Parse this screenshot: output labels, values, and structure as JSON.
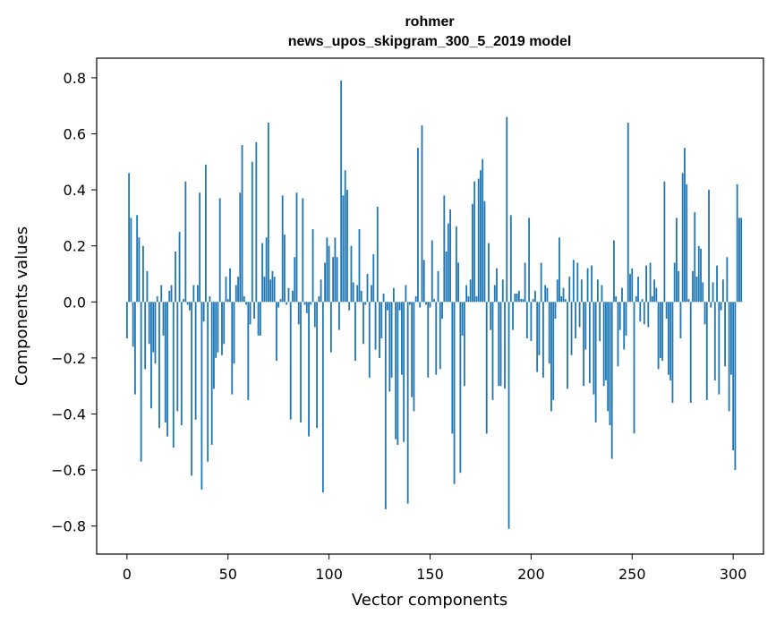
{
  "chart_data": {
    "type": "bar",
    "title": "rohmer",
    "subtitle": "news_upos_skipgram_300_5_2019 model",
    "xlabel": "Vector components",
    "ylabel": "Components values",
    "xlim": [
      -15,
      315
    ],
    "ylim": [
      -0.9,
      0.87
    ],
    "x_ticks": [
      0,
      50,
      100,
      150,
      200,
      250,
      300
    ],
    "x_tick_labels": [
      "0",
      "50",
      "100",
      "150",
      "200",
      "250",
      "300"
    ],
    "y_ticks": [
      0.8,
      0.6,
      0.4,
      0.2,
      0.0,
      -0.2,
      -0.4,
      -0.6,
      -0.8
    ],
    "y_tick_labels": [
      "0.8",
      "0.6",
      "0.4",
      "0.2",
      "0.0",
      "−0.2",
      "−0.4",
      "−0.6",
      "−0.8"
    ],
    "bar_color": "#1f77b4",
    "grid": false,
    "legend": "none",
    "values": [
      -0.13,
      0.46,
      0.3,
      -0.16,
      -0.33,
      0.31,
      0.23,
      -0.57,
      0.2,
      -0.24,
      0.11,
      -0.15,
      -0.38,
      -0.18,
      -0.22,
      0.02,
      -0.45,
      0.06,
      -0.12,
      -0.43,
      -0.48,
      0.04,
      0.06,
      -0.52,
      0.18,
      -0.39,
      0.25,
      -0.44,
      0.01,
      0.43,
      -0.01,
      -0.03,
      -0.62,
      0.06,
      -0.42,
      0.06,
      0.39,
      -0.67,
      -0.07,
      0.49,
      -0.57,
      0.02,
      -0.51,
      -0.31,
      -0.2,
      -0.18,
      0.37,
      -0.19,
      -0.15,
      0.09,
      0.01,
      0.12,
      -0.33,
      -0.22,
      0.06,
      0.09,
      0.39,
      0.56,
      0.02,
      -0.01,
      -0.35,
      -0.08,
      0.5,
      -0.06,
      0.57,
      -0.12,
      -0.12,
      0.21,
      0.09,
      0.23,
      0.64,
      0.08,
      0.11,
      0.09,
      -0.21,
      -0.02,
      0.01,
      0.38,
      0.24,
      -0.01,
      0.05,
      -0.42,
      0.04,
      0.16,
      0.39,
      -0.08,
      -0.43,
      0.37,
      -0.01,
      -0.04,
      -0.48,
      -0.01,
      0.26,
      -0.09,
      -0.45,
      0.02,
      0.08,
      -0.68,
      0.14,
      0.23,
      0.2,
      -0.18,
      0.16,
      0.23,
      0.16,
      -0.1,
      0.79,
      0.38,
      0.47,
      0.4,
      -0.03,
      0.2,
      0.07,
      -0.21,
      0.06,
      0.26,
      0.04,
      -0.15,
      -0.01,
      0.1,
      -0.27,
      0.06,
      0.17,
      -0.17,
      0.34,
      -0.2,
      -0.13,
      0.03,
      -0.74,
      -0.03,
      -0.32,
      -0.27,
      0.05,
      -0.49,
      -0.51,
      -0.03,
      -0.26,
      -0.5,
      0.06,
      -0.72,
      -0.01,
      -0.34,
      -0.39,
      0.02,
      0.55,
      -0.02,
      0.63,
      0.15,
      -0.01,
      -0.27,
      -0.02,
      0.22,
      0.01,
      -0.26,
      0.11,
      -0.24,
      -0.06,
      0.38,
      0.18,
      0.28,
      0.33,
      -0.47,
      -0.65,
      0.27,
      0.14,
      -0.61,
      -0.12,
      -0.3,
      0.06,
      0.02,
      0.08,
      0.35,
      0.43,
      0.02,
      0.44,
      0.47,
      0.51,
      0.36,
      -0.47,
      0.21,
      -0.1,
      -0.35,
      0.06,
      0.12,
      -0.3,
      -0.3,
      0.08,
      -0.31,
      0.66,
      -0.81,
      0.31,
      -0.1,
      0.03,
      0.03,
      0.04,
      0.01,
      0.01,
      0.14,
      -0.13,
      0.3,
      -0.14,
      0.01,
      0.04,
      -0.25,
      -0.19,
      0.14,
      -0.27,
      0.06,
      0.05,
      -0.22,
      -0.39,
      -0.35,
      -0.06,
      0.08,
      0.23,
      0.02,
      0.05,
      0.01,
      -0.31,
      0.09,
      -0.19,
      0.15,
      -0.13,
      0.14,
      -0.09,
      0.08,
      -0.3,
      -0.17,
      0.12,
      -0.29,
      0.13,
      -0.33,
      -0.43,
      0.08,
      -0.14,
      0.06,
      -0.3,
      -0.28,
      -0.39,
      -0.44,
      -0.56,
      0.22,
      0.02,
      -0.23,
      -0.1,
      0.05,
      -0.17,
      -0.12,
      0.64,
      0.1,
      0.12,
      -0.47,
      0.02,
      0.09,
      -0.07,
      0.01,
      -0.08,
      0.13,
      -0.09,
      0.14,
      0.02,
      0.08,
      0.05,
      -0.24,
      -0.2,
      -0.21,
      0.43,
      -0.06,
      -0.26,
      -0.28,
      -0.36,
      0.14,
      0.3,
      0.11,
      -0.13,
      0.46,
      0.55,
      0.42,
      0.01,
      -0.36,
      0.11,
      0.32,
      0.09,
      0.2,
      0.19,
      0.07,
      -0.08,
      -0.35,
      0.4,
      -0.02,
      0.07,
      -0.28,
      0.13,
      -0.33,
      -0.03,
      0.08,
      -0.23,
      0.16,
      -0.39,
      -0.26,
      -0.53,
      -0.6,
      0.42,
      0.3,
      0.3
    ]
  }
}
